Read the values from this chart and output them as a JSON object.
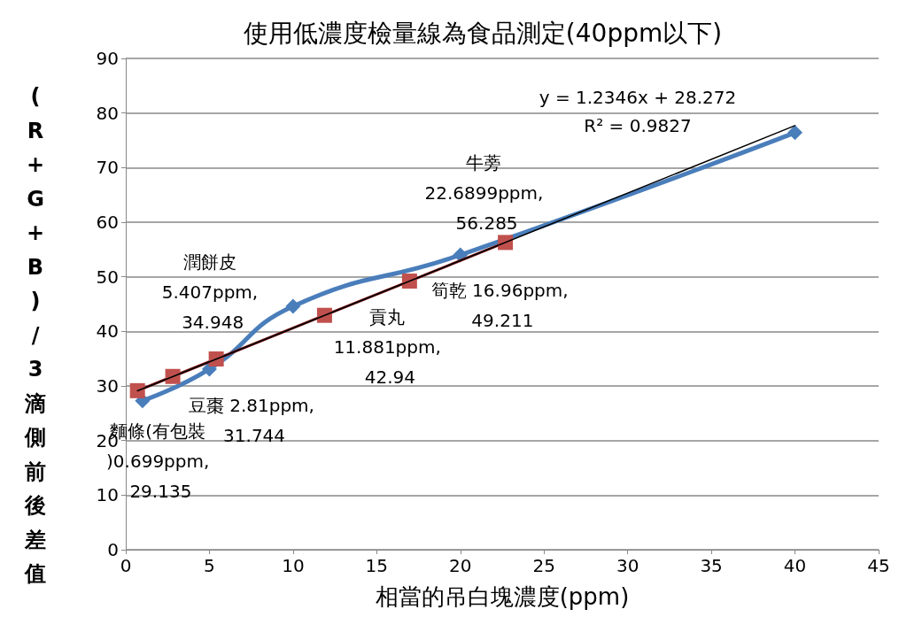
{
  "chart_data": {
    "type": "line",
    "title": "使用低濃度檢量線為食品測定(40ppm以下)",
    "xlabel": "相當的吊白塊濃度(ppm)",
    "ylabel": "(R+G+B)/3滴側前後差值",
    "xlim": [
      0,
      45
    ],
    "xticks": [
      0,
      5,
      10,
      15,
      20,
      25,
      30,
      35,
      40,
      45
    ],
    "ylim": [
      0,
      90
    ],
    "yticks": [
      0,
      10,
      20,
      30,
      40,
      50,
      60,
      70,
      80,
      90
    ],
    "grid": "y",
    "annotations": [
      "y = 1.2346x + 28.272",
      "R² = 0.9827"
    ],
    "series": [
      {
        "color": "#4a7ebb",
        "marker": "diamond",
        "x": [
          1,
          5,
          10,
          20,
          40
        ],
        "values": [
          27.3,
          33.1,
          44.6,
          54.0,
          76.4
        ]
      },
      {
        "color": "#c0504d",
        "marker": "square",
        "x": [
          0.699,
          2.81,
          5.407,
          11.881,
          16.96,
          22.6899
        ],
        "values": [
          29.135,
          31.744,
          34.948,
          42.94,
          49.211,
          56.285
        ],
        "value_labels": [
          "麵條(有包裝)0.699ppm, 29.135",
          "豆棗 2.81ppm, 31.744",
          "潤餅皮 5.407ppm, 34.948",
          "貢丸 11.881ppm, 42.94",
          "筍乾 16.96ppm, 49.211",
          "牛蒡 22.6899ppm, 56.285"
        ]
      },
      {
        "color": "#000000",
        "marker": "none",
        "x": [
          0.7,
          40
        ],
        "values": [
          29.1,
          77.7
        ]
      }
    ]
  }
}
